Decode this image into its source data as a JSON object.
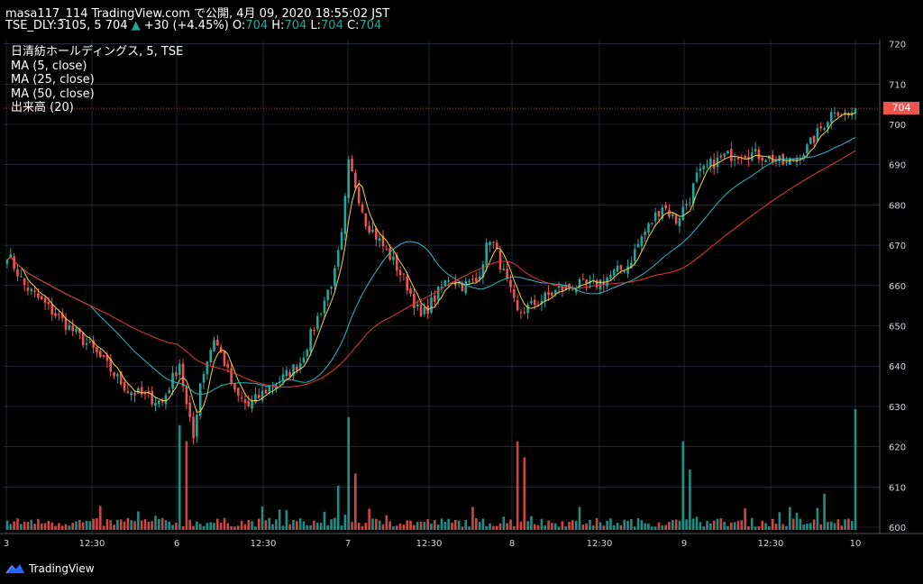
{
  "header": {
    "line1": "masa117_114 TradingView.com で公開, 4月 09, 2020 18:55:02 JST",
    "symbol": "TSE_DLY:3105, 5 704",
    "arrow": "▲",
    "change": "+30 (+4.45%)",
    "o_label": "O:",
    "o": "704",
    "h_label": "H:",
    "h": "704",
    "l_label": "L:",
    "l": "704",
    "c_label": "C:",
    "c": "704"
  },
  "legend": [
    "日清紡ホールディングス, 5, TSE",
    "MA (5, close)",
    "MA (25, close)",
    "MA (50, close)",
    "出来高 (20)"
  ],
  "footer": {
    "brand": "TradingView"
  },
  "colors": {
    "up": "#26a69a",
    "down": "#ef5350",
    "ma5": "#f5d142",
    "ma25": "#2fb8c4",
    "ma50": "#e53935",
    "vol_up": "#26a69a",
    "vol_down": "#ef5350",
    "grid": "#363c4e",
    "axis_text": "#d1d4dc"
  },
  "chart_data": {
    "type": "candlestick",
    "y_axis": {
      "min": 600,
      "max": 720,
      "ticks": [
        "720",
        "710",
        "700",
        "690",
        "680",
        "670",
        "660",
        "650",
        "640",
        "630",
        "620",
        "610",
        "600"
      ]
    },
    "x_axis": {
      "ticks": [
        "3",
        "12:30",
        "6",
        "12:30",
        "7",
        "12:30",
        "8",
        "12:30",
        "9",
        "12:30",
        "10"
      ]
    },
    "last_price": "704",
    "anchors_close": [
      [
        0,
        668
      ],
      [
        5,
        660
      ],
      [
        15,
        652
      ],
      [
        25,
        644
      ],
      [
        35,
        634
      ],
      [
        45,
        631
      ],
      [
        50,
        641
      ],
      [
        52,
        630
      ],
      [
        54,
        622
      ],
      [
        56,
        636
      ],
      [
        60,
        647
      ],
      [
        63,
        641
      ],
      [
        66,
        633
      ],
      [
        70,
        630
      ],
      [
        75,
        634
      ],
      [
        80,
        637
      ],
      [
        85,
        641
      ],
      [
        90,
        652
      ],
      [
        95,
        663
      ],
      [
        97,
        672
      ],
      [
        99,
        690
      ],
      [
        101,
        685
      ],
      [
        104,
        676
      ],
      [
        108,
        671
      ],
      [
        112,
        666
      ],
      [
        116,
        660
      ],
      [
        120,
        652
      ],
      [
        124,
        657
      ],
      [
        128,
        662
      ],
      [
        132,
        660
      ],
      [
        136,
        661
      ],
      [
        140,
        672
      ],
      [
        142,
        668
      ],
      [
        144,
        663
      ],
      [
        148,
        653
      ],
      [
        154,
        656
      ],
      [
        160,
        659
      ],
      [
        165,
        660
      ],
      [
        170,
        660
      ],
      [
        176,
        663
      ],
      [
        180,
        665
      ],
      [
        184,
        672
      ],
      [
        190,
        680
      ],
      [
        194,
        676
      ],
      [
        198,
        682
      ],
      [
        200,
        687
      ],
      [
        204,
        690
      ],
      [
        208,
        692
      ],
      [
        214,
        693
      ],
      [
        220,
        692
      ],
      [
        226,
        690
      ],
      [
        232,
        694
      ],
      [
        236,
        699
      ],
      [
        240,
        704
      ],
      [
        244,
        702
      ],
      [
        246,
        704
      ]
    ],
    "volume_spikes": [
      [
        50,
        26
      ],
      [
        52,
        22
      ],
      [
        99,
        28
      ],
      [
        101,
        14
      ],
      [
        148,
        22
      ],
      [
        150,
        18
      ],
      [
        196,
        22
      ],
      [
        198,
        15
      ],
      [
        246,
        30
      ],
      [
        237,
        9
      ],
      [
        96,
        11
      ]
    ],
    "volume_max": 200000
  }
}
